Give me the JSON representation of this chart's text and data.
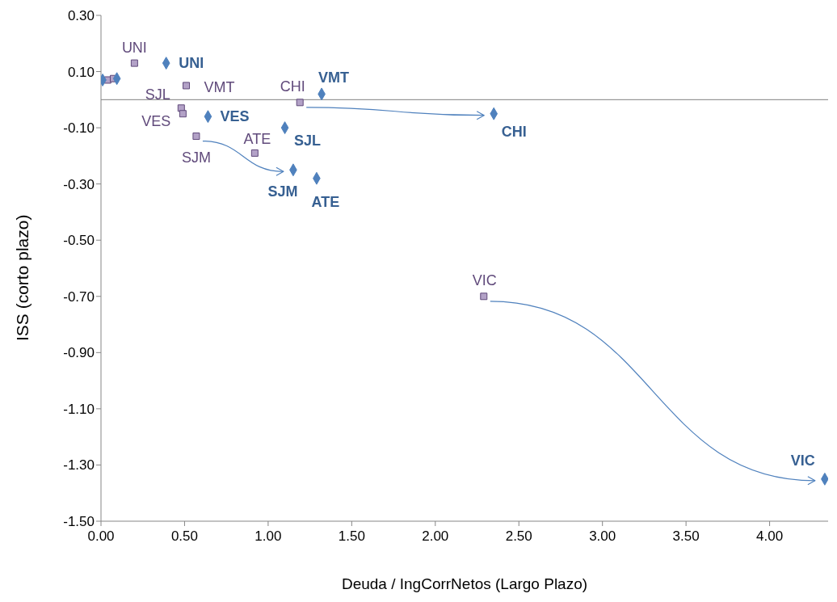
{
  "chart_data": {
    "type": "scatter",
    "xlabel": "Deuda / IngCorrNetos (Largo Plazo)",
    "ylabel": "ISS (corto plazo)",
    "xlim": [
      0,
      4.35
    ],
    "xticks": [
      {
        "value": 0,
        "label": "0.00"
      },
      {
        "value": 0.5,
        "label": "0.50"
      },
      {
        "value": 1,
        "label": "1.00"
      },
      {
        "value": 1.5,
        "label": "1.50"
      },
      {
        "value": 2,
        "label": "2.00"
      },
      {
        "value": 2.5,
        "label": "2.50"
      },
      {
        "value": 3,
        "label": "3.00"
      },
      {
        "value": 3.5,
        "label": "3.50"
      },
      {
        "value": 4,
        "label": "4.00"
      }
    ],
    "ylim": [
      -1.5,
      0.3
    ],
    "yticks": [
      {
        "value": -1.5,
        "label": "-1.50"
      },
      {
        "value": -1.3,
        "label": "-1.30"
      },
      {
        "value": -1.1,
        "label": "-1.10"
      },
      {
        "value": -0.9,
        "label": "-0.90"
      },
      {
        "value": -0.7,
        "label": "-0.70"
      },
      {
        "value": -0.5,
        "label": "-0.50"
      },
      {
        "value": -0.3,
        "label": "-0.30"
      },
      {
        "value": -0.1,
        "label": "-0.10"
      },
      {
        "value": 0.1,
        "label": "0.10"
      },
      {
        "value": 0.3,
        "label": "0.30"
      }
    ],
    "grid": false,
    "legend": false,
    "ref_lines": [
      {
        "axis": "y",
        "value": 0,
        "color": "#808080"
      }
    ],
    "series": [
      {
        "color": "#b3a2c7",
        "marker": "square",
        "x": [
          0.2,
          0.51,
          1.19,
          0.48,
          0.49,
          0.57,
          0.92,
          2.29,
          0.04,
          0.075
        ],
        "values": [
          0.13,
          0.05,
          -0.01,
          -0.03,
          -0.05,
          -0.13,
          -0.19,
          -0.7,
          0.07,
          0.075
        ]
      },
      {
        "color": "#4f81bd",
        "marker": "diamond",
        "x": [
          0.39,
          1.32,
          2.35,
          0.64,
          1.1,
          1.15,
          1.29,
          4.33,
          0.095,
          0.01
        ],
        "values": [
          0.13,
          0.02,
          -0.05,
          -0.06,
          -0.1,
          -0.25,
          -0.28,
          -1.35,
          0.075,
          0.07
        ]
      }
    ],
    "annotations": [
      {
        "text": "UNI",
        "x": 0.2,
        "y": 0.13
      },
      {
        "text": "VMT",
        "x": 0.51,
        "y": 0.05
      },
      {
        "text": "CHI",
        "x": 1.19,
        "y": -0.01
      },
      {
        "text": "SJL",
        "x": 0.48,
        "y": -0.03
      },
      {
        "text": "VES",
        "x": 0.49,
        "y": -0.05
      },
      {
        "text": "SJM",
        "x": 0.57,
        "y": -0.13
      },
      {
        "text": "ATE",
        "x": 0.92,
        "y": -0.19
      },
      {
        "text": "VIC",
        "x": 2.29,
        "y": -0.7
      },
      {
        "text": "UNI",
        "x": 0.39,
        "y": 0.13
      },
      {
        "text": "VMT",
        "x": 1.32,
        "y": 0.02
      },
      {
        "text": "CHI",
        "x": 2.35,
        "y": -0.05
      },
      {
        "text": "VES",
        "x": 0.64,
        "y": -0.06
      },
      {
        "text": "SJL",
        "x": 1.1,
        "y": -0.1
      },
      {
        "text": "SJM",
        "x": 1.15,
        "y": -0.25
      },
      {
        "text": "ATE",
        "x": 1.29,
        "y": -0.28
      },
      {
        "text": "VIC",
        "x": 4.33,
        "y": -1.35
      }
    ]
  }
}
